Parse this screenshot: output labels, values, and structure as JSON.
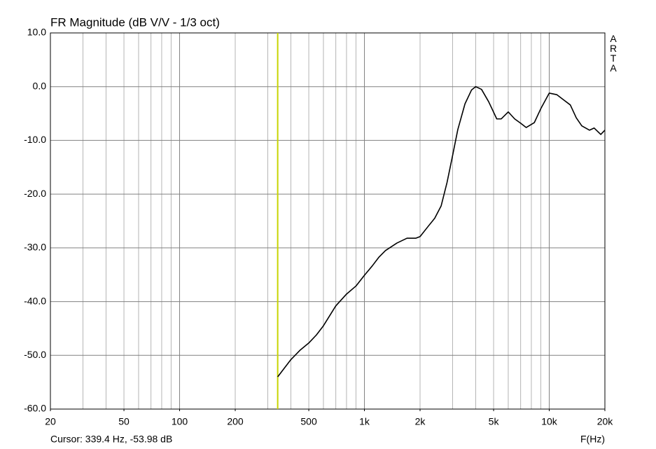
{
  "chart_data": {
    "type": "line",
    "title": "FR Magnitude (dB V/V - 1/3 oct)",
    "side_label": "ARTA",
    "x_label": "F(Hz)",
    "log_x": true,
    "grid": true,
    "color": "#000000",
    "cursor": {
      "x": 339.4,
      "color": "#c8d400",
      "label": "Cursor: 339.4 Hz, -53.98 dB"
    },
    "x": [
      339.4,
      400,
      450,
      500,
      550,
      600,
      700,
      800,
      900,
      1000,
      1100,
      1200,
      1300,
      1500,
      1700,
      1900,
      2000,
      2200,
      2400,
      2600,
      2800,
      3000,
      3200,
      3500,
      3800,
      4000,
      4300,
      4700,
      5200,
      5500,
      6000,
      6500,
      7000,
      7500,
      8300,
      9000,
      10000,
      11000,
      12000,
      13000,
      14000,
      15000,
      16500,
      17500,
      19000,
      20000
    ],
    "values": [
      -54.0,
      -50.8,
      -49.0,
      -47.7,
      -46.2,
      -44.5,
      -40.8,
      -38.6,
      -37.1,
      -35.1,
      -33.4,
      -31.7,
      -30.5,
      -29.1,
      -28.2,
      -28.2,
      -27.9,
      -26.1,
      -24.5,
      -22.2,
      -17.8,
      -12.8,
      -8.0,
      -3.2,
      -0.6,
      0.0,
      -0.5,
      -2.8,
      -6.0,
      -6.0,
      -4.7,
      -6.0,
      -6.8,
      -7.6,
      -6.7,
      -4.1,
      -1.2,
      -1.5,
      -2.5,
      -3.4,
      -5.8,
      -7.3,
      -8.1,
      -7.7,
      -8.9,
      -8.1
    ],
    "xlim": [
      20,
      20000
    ],
    "xticks": [
      20,
      50,
      100,
      200,
      500,
      {
        "value": 1000,
        "label": "1k"
      },
      {
        "value": 2000,
        "label": "2k"
      },
      {
        "value": 5000,
        "label": "5k"
      },
      {
        "value": 10000,
        "label": "10k"
      },
      {
        "value": 20000,
        "label": "20k"
      }
    ],
    "ylim": [
      -60,
      10
    ],
    "yticks": [
      {
        "value": -60,
        "label": "-60.0"
      },
      {
        "value": -50,
        "label": "-50.0"
      },
      {
        "value": -40,
        "label": "-40.0"
      },
      {
        "value": -30,
        "label": "-30.0"
      },
      {
        "value": -20,
        "label": "-20.0"
      },
      {
        "value": -10,
        "label": "-10.0"
      },
      {
        "value": 0,
        "label": "0.0"
      },
      {
        "value": 10,
        "label": "10.0"
      }
    ]
  }
}
